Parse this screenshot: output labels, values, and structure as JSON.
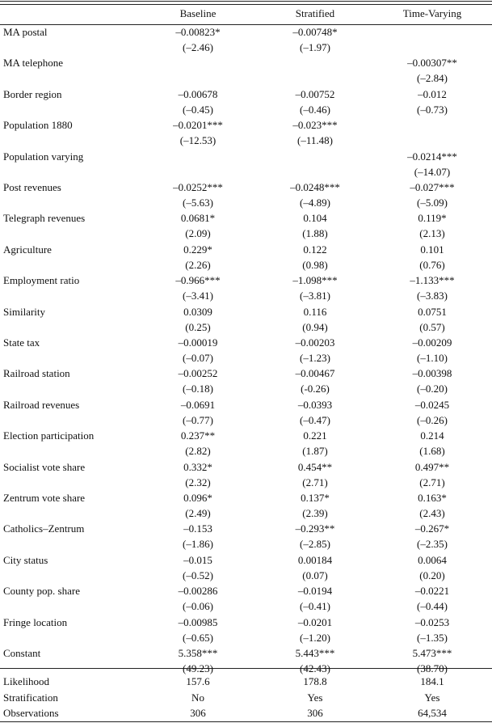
{
  "table": {
    "columns": [
      "Baseline",
      "Stratified",
      "Time-Varying"
    ],
    "rows": [
      {
        "label": "MA postal",
        "cells": [
          [
            "–0.00823*",
            "(–2.46)"
          ],
          [
            "–0.00748*",
            "(–1.97)"
          ],
          null
        ]
      },
      {
        "label": "MA telephone",
        "cells": [
          null,
          null,
          [
            "–0.00307**",
            "(–2.84)"
          ]
        ]
      },
      {
        "label": "Border region",
        "cells": [
          [
            "–0.00678",
            "(–0.45)"
          ],
          [
            "–0.00752",
            "(–0.46)"
          ],
          [
            "–0.012",
            "(–0.73)"
          ]
        ]
      },
      {
        "label": "Population 1880",
        "cells": [
          [
            "–0.0201***",
            "(–12.53)"
          ],
          [
            "–0.023***",
            "(–11.48)"
          ],
          null
        ]
      },
      {
        "label": "Population varying",
        "cells": [
          null,
          null,
          [
            "–0.0214***",
            "(–14.07)"
          ]
        ]
      },
      {
        "label": "Post revenues",
        "cells": [
          [
            "–0.0252***",
            "(–5.63)"
          ],
          [
            "–0.0248***",
            "(–4.89)"
          ],
          [
            "–0.027***",
            "(–5.09)"
          ]
        ]
      },
      {
        "label": "Telegraph revenues",
        "cells": [
          [
            "0.0681*",
            "(2.09)"
          ],
          [
            "0.104",
            "(1.88)"
          ],
          [
            "0.119*",
            "(2.13)"
          ]
        ]
      },
      {
        "label": "Agriculture",
        "cells": [
          [
            "0.229*",
            "(2.26)"
          ],
          [
            "0.122",
            "(0.98)"
          ],
          [
            "0.101",
            "(0.76)"
          ]
        ]
      },
      {
        "label": "Employment ratio",
        "cells": [
          [
            "–0.966***",
            "(–3.41)"
          ],
          [
            "–1.098***",
            "(–3.81)"
          ],
          [
            "–1.133***",
            "(–3.83)"
          ]
        ]
      },
      {
        "label": "Similarity",
        "cells": [
          [
            "0.0309",
            "(0.25)"
          ],
          [
            "0.116",
            "(0.94)"
          ],
          [
            "0.0751",
            "(0.57)"
          ]
        ]
      },
      {
        "label": "State tax",
        "cells": [
          [
            "–0.00019",
            "(–0.07)"
          ],
          [
            "–0.00203",
            "(–1.23)"
          ],
          [
            "–0.00209",
            "(–1.10)"
          ]
        ]
      },
      {
        "label": "Railroad station",
        "cells": [
          [
            "–0.00252",
            "(–0.18)"
          ],
          [
            "–0.00467",
            "(-0.26)"
          ],
          [
            "–0.00398",
            "(–0.20)"
          ]
        ]
      },
      {
        "label": "Railroad revenues",
        "cells": [
          [
            "–0.0691",
            "(–0.77)"
          ],
          [
            "–0.0393",
            "(–0.47)"
          ],
          [
            "–0.0245",
            "(–0.26)"
          ]
        ]
      },
      {
        "label": "Election participation",
        "cells": [
          [
            "0.237**",
            "(2.82)"
          ],
          [
            "0.221",
            "(1.87)"
          ],
          [
            "0.214",
            "(1.68)"
          ]
        ]
      },
      {
        "label": "Socialist vote share",
        "cells": [
          [
            "0.332*",
            "(2.32)"
          ],
          [
            "0.454**",
            "(2.71)"
          ],
          [
            "0.497**",
            "(2.71)"
          ]
        ]
      },
      {
        "label": "Zentrum vote share",
        "cells": [
          [
            "0.096*",
            "(2.49)"
          ],
          [
            "0.137*",
            "(2.39)"
          ],
          [
            "0.163*",
            "(2.43)"
          ]
        ]
      },
      {
        "label": "Catholics–Zentrum",
        "cells": [
          [
            "–0.153",
            "(–1.86)"
          ],
          [
            "–0.293**",
            "(–2.85)"
          ],
          [
            "–0.267*",
            "(–2.35)"
          ]
        ]
      },
      {
        "label": "City status",
        "cells": [
          [
            "–0.015",
            "(–0.52)"
          ],
          [
            "0.00184",
            "(0.07)"
          ],
          [
            "0.0064",
            "(0.20)"
          ]
        ]
      },
      {
        "label": "County pop. share",
        "cells": [
          [
            "–0.00286",
            "(–0.06)"
          ],
          [
            "–0.0194",
            "(–0.41)"
          ],
          [
            "–0.0221",
            "(–0.44)"
          ]
        ]
      },
      {
        "label": "Fringe location",
        "cells": [
          [
            "–0.00985",
            "(–0.65)"
          ],
          [
            "–0.0201",
            "(–1.20)"
          ],
          [
            "–0.0253",
            "(–1.35)"
          ]
        ]
      },
      {
        "label": "Constant",
        "cells": [
          [
            "5.358***",
            "(49.23)"
          ],
          [
            "5.443***",
            "(42.43)"
          ],
          [
            "5.473***",
            "(38.70)"
          ]
        ]
      }
    ],
    "footer": [
      [
        "Likelihood",
        "157.6",
        "178.8",
        "184.1"
      ],
      [
        "Stratification",
        "No",
        "Yes",
        "Yes"
      ],
      [
        "Observations",
        "306",
        "306",
        "64,534"
      ]
    ]
  }
}
